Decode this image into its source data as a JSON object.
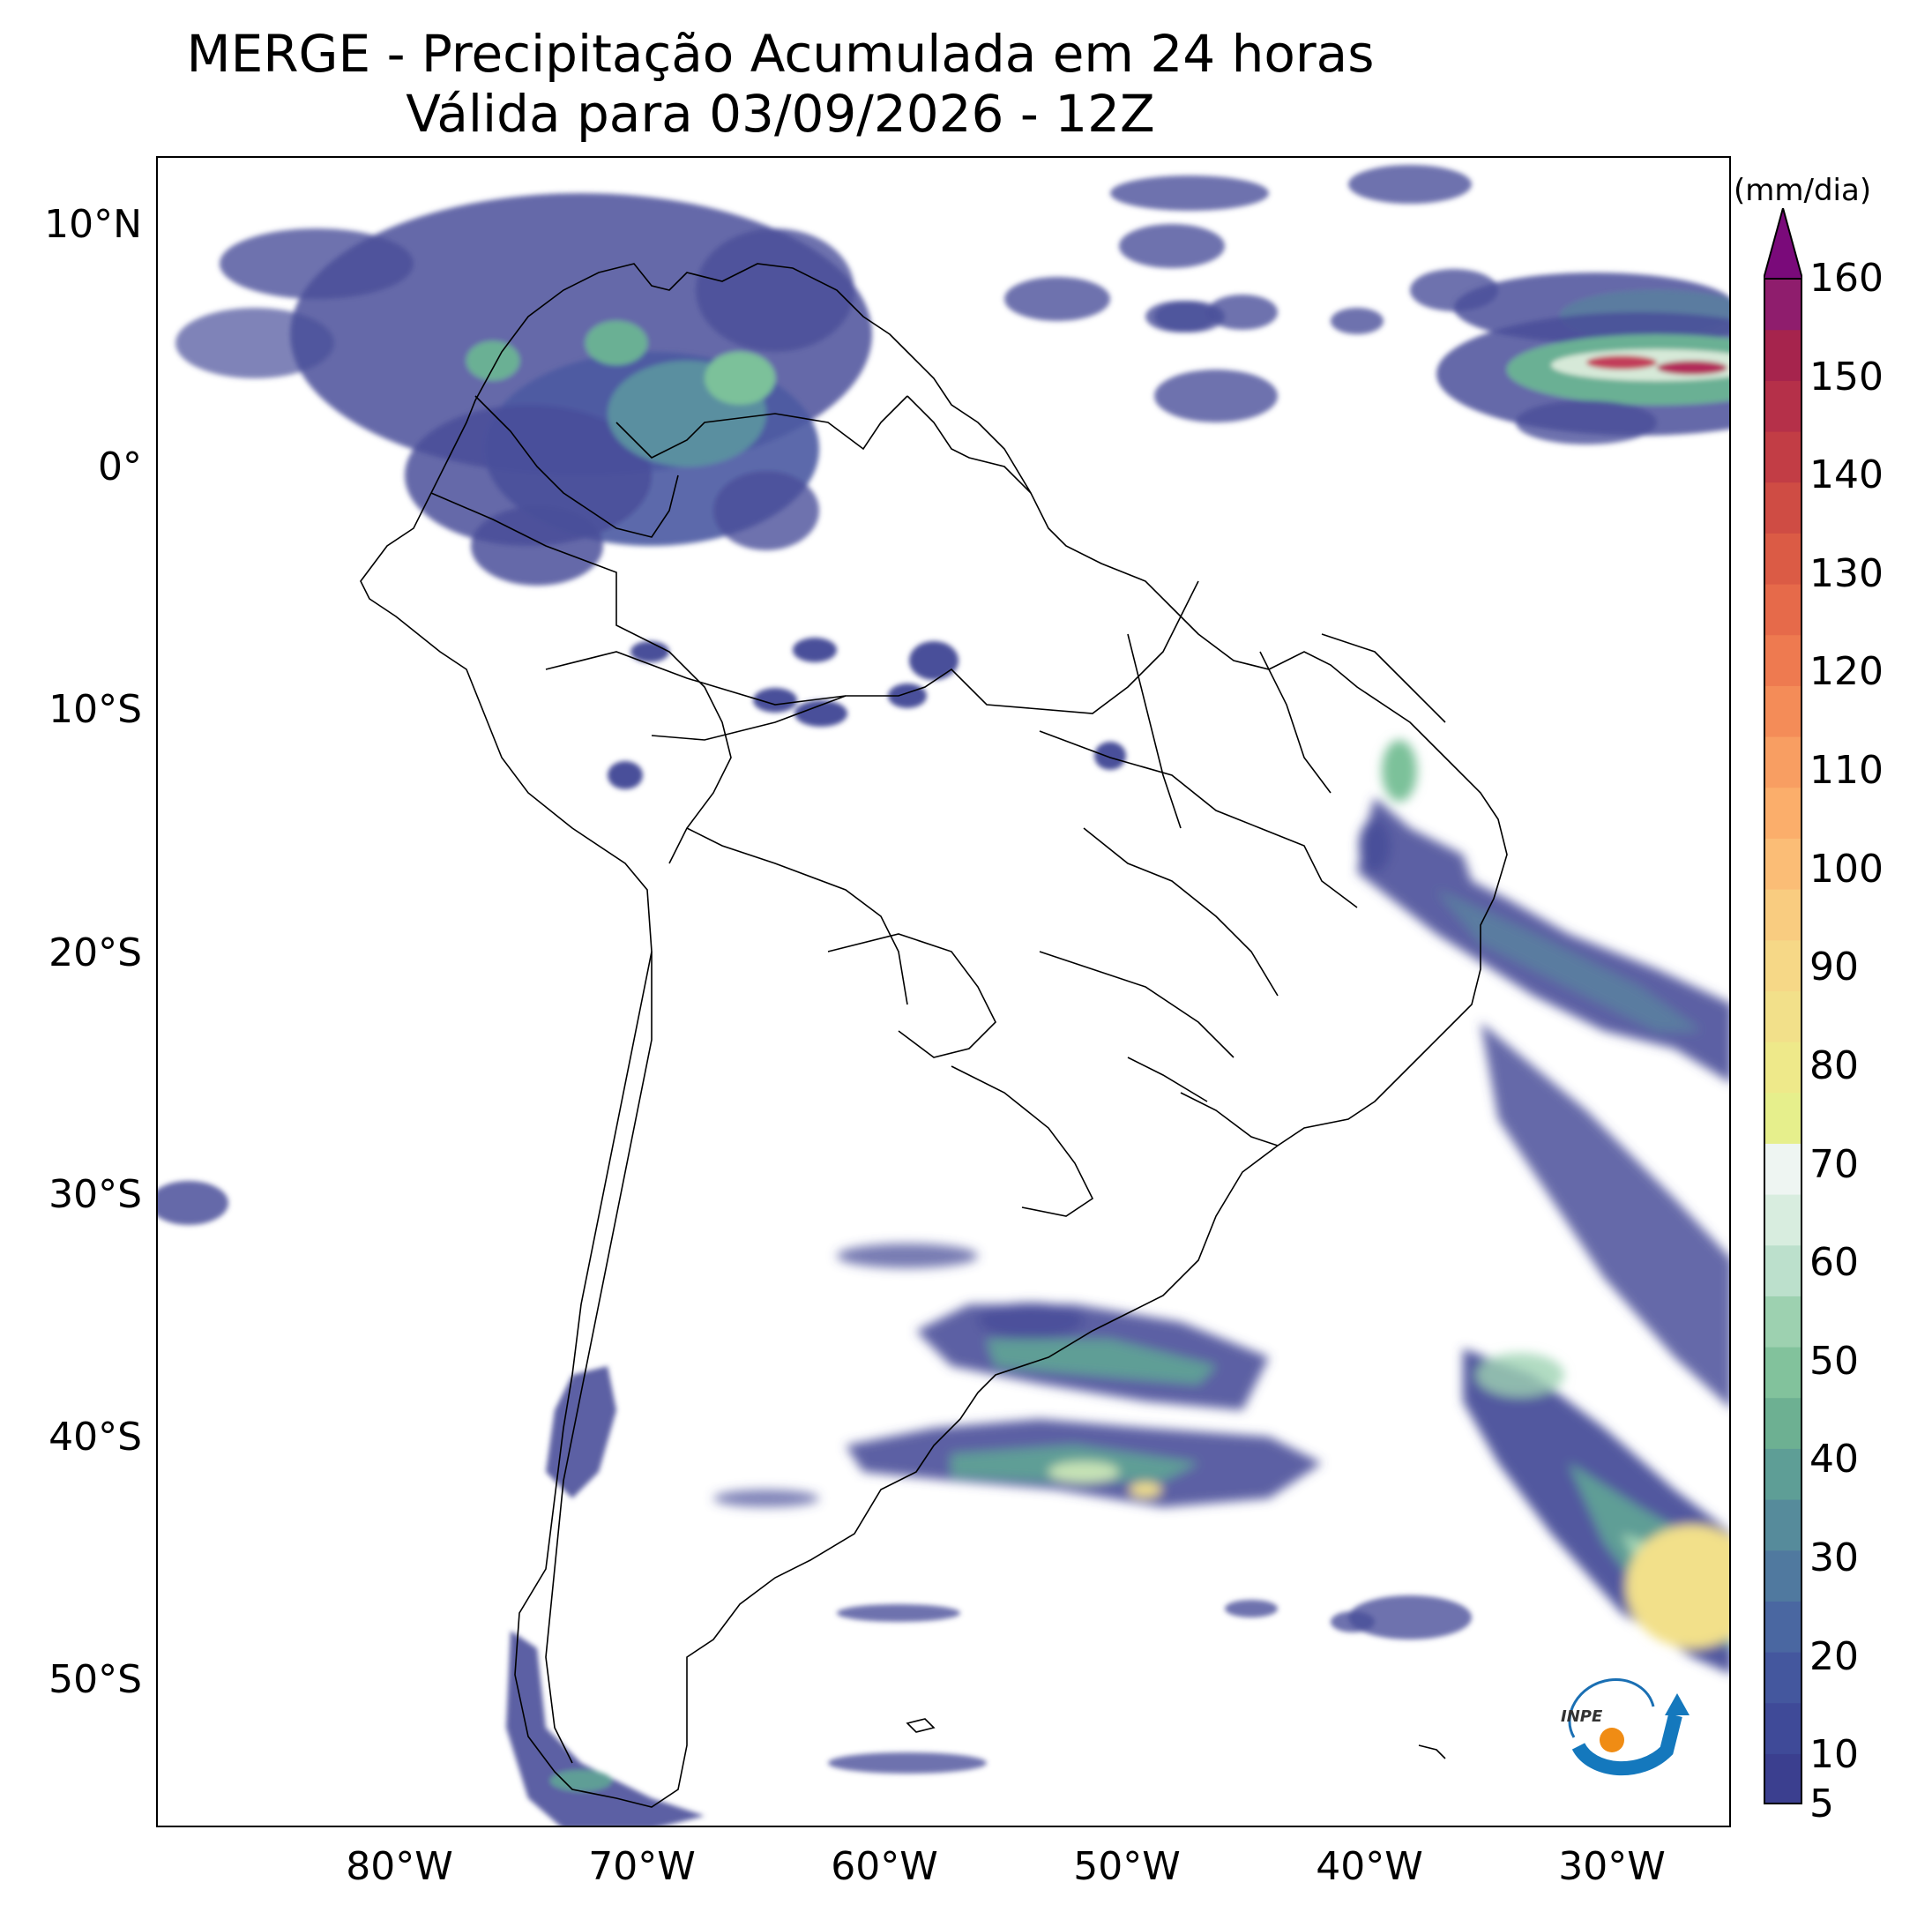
{
  "title_line1": "MERGE - Precipitação Acumulada em 24 horas",
  "title_line2": "Válida para 03/09/2026 - 12Z",
  "map": {
    "lon_range": [
      -90,
      -25
    ],
    "lat_range": [
      -56,
      13
    ],
    "lat_ticks": [
      {
        "value": 10,
        "label": "10°N"
      },
      {
        "value": 0,
        "label": "0°"
      },
      {
        "value": -10,
        "label": "10°S"
      },
      {
        "value": -20,
        "label": "20°S"
      },
      {
        "value": -30,
        "label": "30°S"
      },
      {
        "value": -40,
        "label": "40°S"
      },
      {
        "value": -50,
        "label": "50°S"
      }
    ],
    "lon_ticks": [
      {
        "value": -80,
        "label": "80°W"
      },
      {
        "value": -70,
        "label": "70°W"
      },
      {
        "value": -60,
        "label": "60°W"
      },
      {
        "value": -50,
        "label": "50°W"
      },
      {
        "value": -40,
        "label": "40°W"
      },
      {
        "value": -30,
        "label": "30°W"
      }
    ]
  },
  "colorbar": {
    "unit": "(mm/dia)",
    "min": 5,
    "max": 160,
    "extend": "max",
    "tick_labels": [
      "5",
      "10",
      "20",
      "30",
      "40",
      "50",
      "60",
      "70",
      "80",
      "90",
      "100",
      "110",
      "120",
      "130",
      "140",
      "150",
      "160"
    ],
    "tick_values": [
      5,
      10,
      20,
      30,
      40,
      50,
      60,
      70,
      80,
      90,
      100,
      110,
      120,
      130,
      140,
      150,
      160
    ],
    "level_colors": [
      "#3b3f8f",
      "#3f4a98",
      "#44579e",
      "#4a67a1",
      "#50799f",
      "#568b9b",
      "#5e9e96",
      "#6db092",
      "#82c29c",
      "#9dd1b0",
      "#bce0cc",
      "#d8eddf",
      "#eef5f2",
      "#e6ef8c",
      "#eee98a",
      "#f2e08a",
      "#f6d887",
      "#f9cc80",
      "#fbbd76",
      "#fbae6b",
      "#f89e62",
      "#f48c58",
      "#ee7a50",
      "#e66a4a",
      "#db5b45",
      "#cf4c44",
      "#c23d45",
      "#b53049",
      "#a6244d",
      "#8f1d6d"
    ],
    "extend_color": "#7a0a7a"
  },
  "logo": {
    "text": "INPE"
  }
}
